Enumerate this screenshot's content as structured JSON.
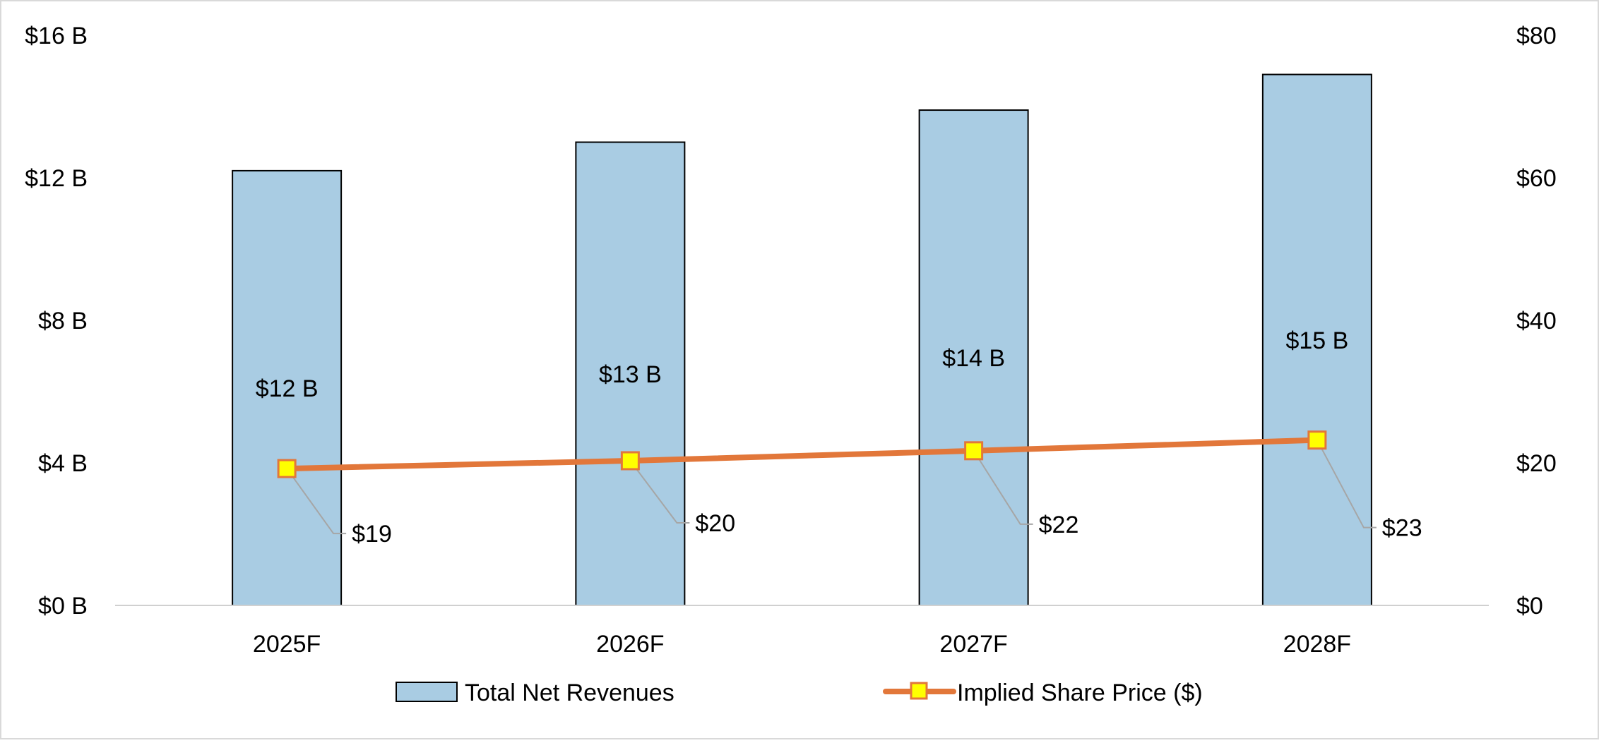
{
  "chart_data": {
    "type": "bar",
    "categories": [
      "2025F",
      "2026F",
      "2027F",
      "2028F"
    ],
    "series": [
      {
        "name": "Total Net Revenues",
        "type": "bar",
        "axis": "left",
        "values": [
          12.2,
          13.0,
          13.9,
          14.9
        ],
        "labels": [
          "$12 B",
          "$13 B",
          "$14 B",
          "$15 B"
        ]
      },
      {
        "name": "Implied Share Price ($)",
        "type": "line",
        "axis": "right",
        "values": [
          19.2,
          20.3,
          21.7,
          23.2
        ],
        "labels": [
          "$19",
          "$20",
          "$22",
          "$23"
        ]
      }
    ],
    "left_axis": {
      "min": 0,
      "max": 16,
      "step": 4,
      "tick_labels": [
        "$0 B",
        "$4 B",
        "$8 B",
        "$12 B",
        "$16 B"
      ]
    },
    "right_axis": {
      "min": 0,
      "max": 80,
      "step": 20,
      "tick_labels": [
        "$0",
        "$20",
        "$40",
        "$60",
        "$80"
      ]
    },
    "grid": false,
    "legend_position": "bottom",
    "colors": {
      "bar_fill": "#A9CCE3",
      "bar_stroke": "#000000",
      "line": "#E2773A",
      "marker_fill": "#FFFF00",
      "marker_stroke": "#E2773A",
      "leader": "#A6A6A6",
      "axis": "#D0D0D0",
      "border": "#D9D9D9"
    }
  }
}
